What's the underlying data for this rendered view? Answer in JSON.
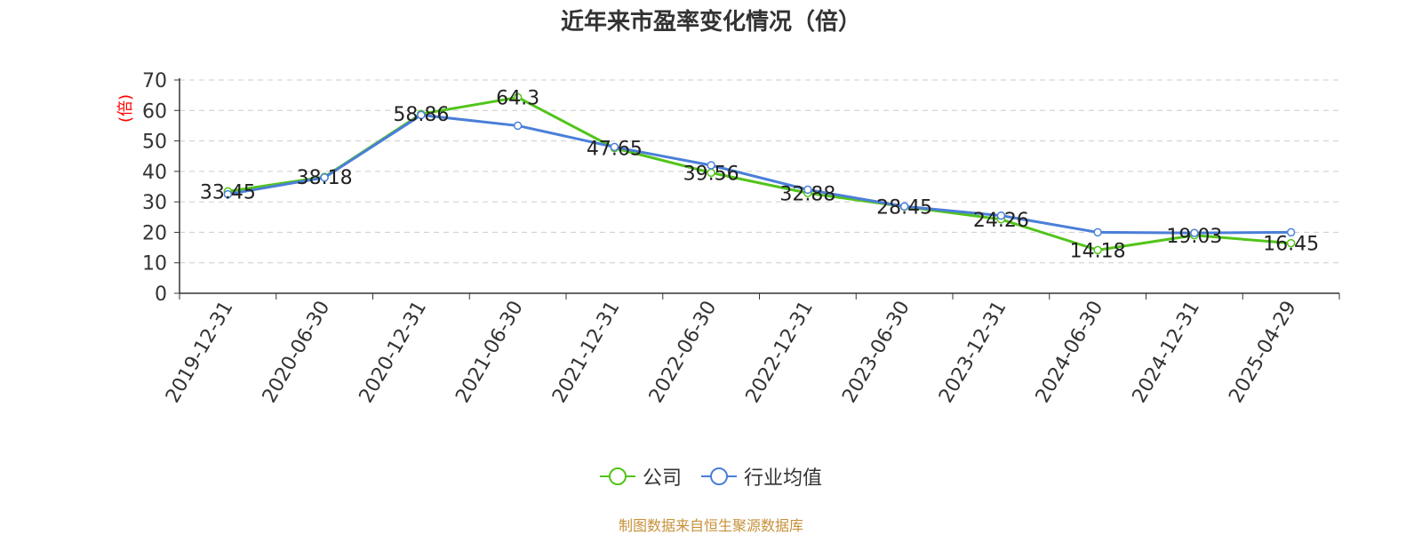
{
  "title": "近年来市盈率变化情况（倍）",
  "source_note": "制图数据来自恒生聚源数据库",
  "colors": {
    "company": "#52c41a",
    "industry": "#4a7fd8",
    "ylabel": "#ff0000",
    "source": "#c6913a"
  },
  "chart_data": {
    "type": "line",
    "title": "近年来市盈率变化情况（倍）",
    "ylabel": "(倍)",
    "ylim": [
      0,
      70
    ],
    "yticks": [
      0,
      10,
      20,
      30,
      40,
      50,
      60,
      70
    ],
    "grid": true,
    "legend_position": "bottom",
    "categories": [
      "2019-12-31",
      "2020-06-30",
      "2020-12-31",
      "2021-06-30",
      "2021-12-31",
      "2022-06-30",
      "2022-12-31",
      "2023-06-30",
      "2023-12-31",
      "2024-06-30",
      "2024-12-31",
      "2025-04-29"
    ],
    "series": [
      {
        "name": "公司",
        "color": "#52c41a",
        "values": [
          33.45,
          38.18,
          58.86,
          64.3,
          47.65,
          39.56,
          32.88,
          28.45,
          24.26,
          14.18,
          19.03,
          16.45
        ],
        "labels": [
          "33.45",
          "38.18",
          "58.86",
          "64.3",
          "47.65",
          "39.56",
          "32.88",
          "28.45",
          "24.26",
          "14.18",
          "19.03",
          "16.45"
        ]
      },
      {
        "name": "行业均值",
        "color": "#4a7fd8",
        "values": [
          32.5,
          38.0,
          58.5,
          55.0,
          48.0,
          42.0,
          34.0,
          28.5,
          25.5,
          20.0,
          19.8,
          20.0
        ]
      }
    ]
  }
}
